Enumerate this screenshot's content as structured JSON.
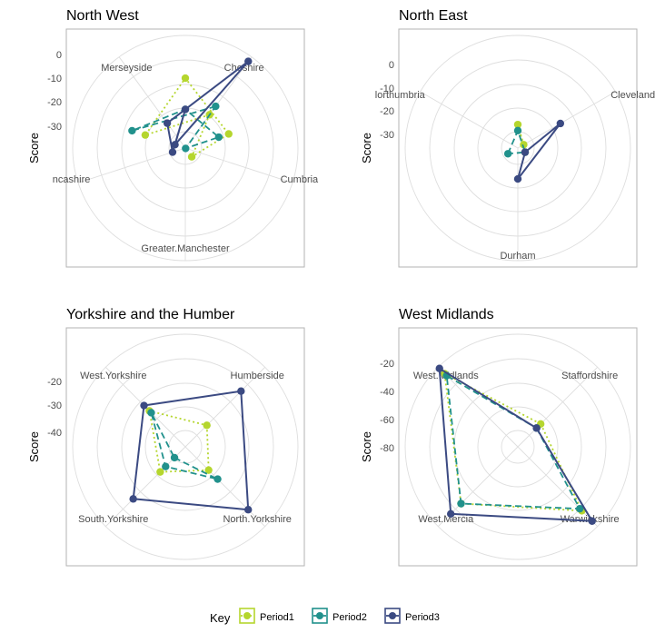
{
  "colors": {
    "Period1": "#b5d62e",
    "Period2": "#21918c",
    "Period3": "#3b4a82",
    "grid": "#dedede",
    "frame": "#b3b3b3",
    "text": "#000000",
    "label": "#4d4d4d"
  },
  "legend": {
    "title": "Key",
    "items": [
      {
        "name": "Period1"
      },
      {
        "name": "Period2"
      },
      {
        "name": "Period3"
      }
    ]
  },
  "chart_data": [
    {
      "type": "radar",
      "title": "North West",
      "ylabel": "Score",
      "axes": [
        "Cheshire",
        "Cumbria",
        "Greater.Manchester",
        "Lancashire",
        "Merseyside"
      ],
      "axis_labels_shown": [
        "Cheshire",
        "Cumbria",
        "Greater.Manchester",
        "ncashire",
        "Merseyside"
      ],
      "yticks": [
        "0",
        "-10",
        "-20",
        "-30"
      ],
      "series": [
        {
          "name": "Period1",
          "values": [
            -20,
            -44,
            -52,
            -45,
            -35
          ]
        },
        {
          "name": "Period2",
          "values": [
            -17,
            -48,
            -43,
            -42,
            -32
          ]
        },
        {
          "name": "Period3",
          "values": [
            -1,
            -35,
            -43,
            -28,
            -23
          ]
        }
      ]
    },
    {
      "type": "radar",
      "title": "North East",
      "ylabel": "Score",
      "axes": [
        "Cleveland",
        "Durham",
        "Northumbria"
      ],
      "axis_labels_shown": [
        "Cleveland",
        "Durham",
        "lorthumbria"
      ],
      "yticks": [
        "0",
        "-10",
        "-20",
        "-30"
      ],
      "series": [
        {
          "name": "Period1",
          "values": [
            -32,
            -42,
            -37
          ]
        },
        {
          "name": "Period2",
          "values": [
            -38,
            -40,
            -37
          ]
        },
        {
          "name": "Period3",
          "values": [
            -18,
            -24,
            -37
          ]
        }
      ]
    },
    {
      "type": "radar",
      "title": "Yorkshire and the Humber",
      "ylabel": "Score",
      "axes": [
        "Humberside",
        "North.Yorkshire",
        "South.Yorkshire",
        "West.Yorkshire"
      ],
      "axis_labels_shown": [
        "Humberside",
        "North.Yorkshire",
        "South.Yorkshire",
        "West.Yorkshire"
      ],
      "yticks": [
        "-20",
        "-30",
        "-40"
      ],
      "series": [
        {
          "name": "Period1",
          "values": [
            -40,
            -39,
            -38,
            -32
          ]
        },
        {
          "name": "Period2",
          "values": [
            -58,
            -34,
            -41,
            -33
          ]
        },
        {
          "name": "Period3",
          "values": [
            -21,
            -17,
            -23,
            -29
          ]
        }
      ]
    },
    {
      "type": "radar",
      "title": "West Midlands",
      "ylabel": "Score",
      "axes": [
        "Staffordshire",
        "Warwickshire",
        "West.Mercia",
        "West.Midlands"
      ],
      "axis_labels_shown": [
        "Staffordshire",
        "Warwickshire",
        "West.Mercia",
        "West.Midlands"
      ],
      "yticks": [
        "-20",
        "-40",
        "-60",
        "-80"
      ],
      "series": [
        {
          "name": "Period1",
          "values": [
            -89,
            -49,
            -56,
            -40
          ]
        },
        {
          "name": "Period2",
          "values": [
            -93,
            -51,
            -56,
            -42
          ]
        },
        {
          "name": "Period3",
          "values": [
            -93,
            -39,
            -46,
            -35
          ]
        }
      ]
    }
  ]
}
